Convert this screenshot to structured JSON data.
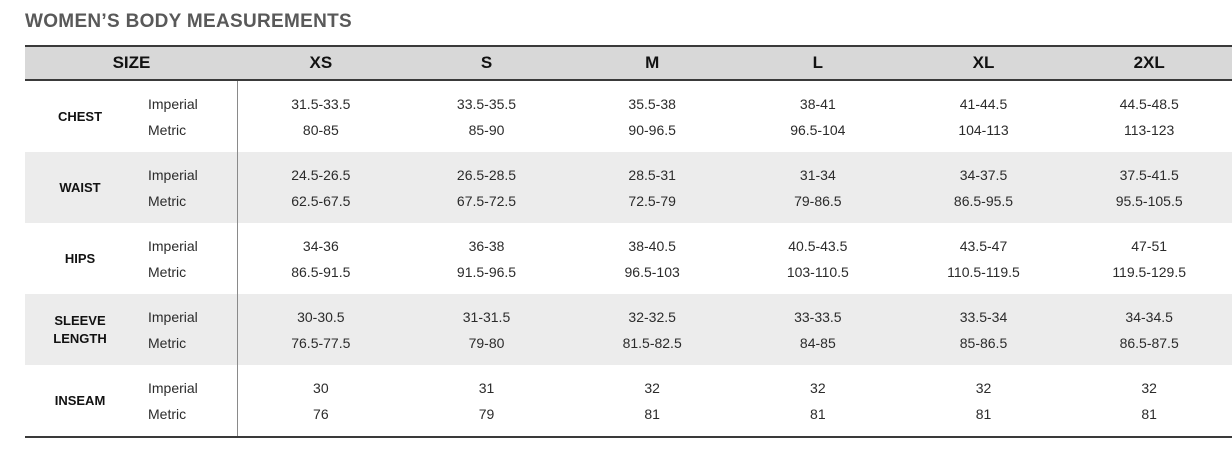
{
  "title": "WOMEN’S BODY MEASUREMENTS",
  "table": {
    "size_header": "SIZE",
    "sizes": [
      "XS",
      "S",
      "M",
      "L",
      "XL",
      "2XL"
    ],
    "unit_labels": [
      "Imperial",
      "Metric"
    ],
    "rows": [
      {
        "label": "CHEST",
        "imperial": [
          "31.5-33.5",
          "33.5-35.5",
          "35.5-38",
          "38-41",
          "41-44.5",
          "44.5-48.5"
        ],
        "metric": [
          "80-85",
          "85-90",
          "90-96.5",
          "96.5-104",
          "104-113",
          "113-123"
        ]
      },
      {
        "label": "WAIST",
        "imperial": [
          "24.5-26.5",
          "26.5-28.5",
          "28.5-31",
          "31-34",
          "34-37.5",
          "37.5-41.5"
        ],
        "metric": [
          "62.5-67.5",
          "67.5-72.5",
          "72.5-79",
          "79-86.5",
          "86.5-95.5",
          "95.5-105.5"
        ]
      },
      {
        "label": "HIPS",
        "imperial": [
          "34-36",
          "36-38",
          "38-40.5",
          "40.5-43.5",
          "43.5-47",
          "47-51"
        ],
        "metric": [
          "86.5-91.5",
          "91.5-96.5",
          "96.5-103",
          "103-110.5",
          "110.5-119.5",
          "119.5-129.5"
        ]
      },
      {
        "label": "SLEEVE LENGTH",
        "imperial": [
          "30-30.5",
          "31-31.5",
          "32-32.5",
          "33-33.5",
          "33.5-34",
          "34-34.5"
        ],
        "metric": [
          "76.5-77.5",
          "79-80",
          "81.5-82.5",
          "84-85",
          "85-86.5",
          "86.5-87.5"
        ]
      },
      {
        "label": "INSEAM",
        "imperial": [
          "30",
          "31",
          "32",
          "32",
          "32",
          "32"
        ],
        "metric": [
          "76",
          "79",
          "81",
          "81",
          "81",
          "81"
        ]
      }
    ]
  },
  "colors": {
    "header_bg": "#d8d8d8",
    "row_alt_bg": "#ececec",
    "border_dark": "#3a3a3a",
    "divider": "#8a8a8a",
    "title_color": "#595959",
    "text_color": "#2b2b2b"
  }
}
